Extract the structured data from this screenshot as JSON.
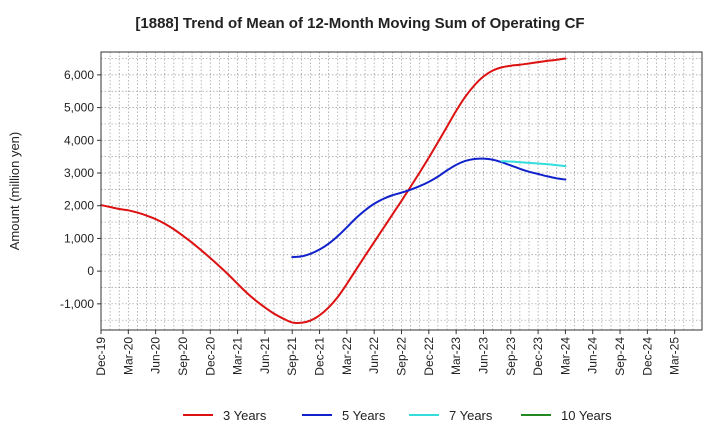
{
  "chart_data": {
    "type": "line",
    "title": "[1888]  Trend of Mean of 12-Month Moving Sum of Operating CF",
    "xlabel": "",
    "ylabel": "Amount (million yen)",
    "ylim": [
      -1800,
      6700
    ],
    "yticks": [
      -1000,
      0,
      1000,
      2000,
      3000,
      4000,
      5000,
      6000
    ],
    "ytick_labels": [
      "-1,000",
      "0",
      "1,000",
      "2,000",
      "3,000",
      "4,000",
      "5,000",
      "6,000"
    ],
    "x_range": [
      0,
      66
    ],
    "xticks": [
      {
        "label": "Dec-19",
        "pos": 0
      },
      {
        "label": "Mar-20",
        "pos": 3
      },
      {
        "label": "Jun-20",
        "pos": 6
      },
      {
        "label": "Sep-20",
        "pos": 9
      },
      {
        "label": "Dec-20",
        "pos": 12
      },
      {
        "label": "Mar-21",
        "pos": 15
      },
      {
        "label": "Jun-21",
        "pos": 18
      },
      {
        "label": "Sep-21",
        "pos": 21
      },
      {
        "label": "Dec-21",
        "pos": 24
      },
      {
        "label": "Mar-22",
        "pos": 27
      },
      {
        "label": "Jun-22",
        "pos": 30
      },
      {
        "label": "Sep-22",
        "pos": 33
      },
      {
        "label": "Dec-22",
        "pos": 36
      },
      {
        "label": "Mar-23",
        "pos": 39
      },
      {
        "label": "Jun-23",
        "pos": 42
      },
      {
        "label": "Sep-23",
        "pos": 45
      },
      {
        "label": "Dec-23",
        "pos": 48
      },
      {
        "label": "Mar-24",
        "pos": 51
      },
      {
        "label": "Jun-24",
        "pos": 54
      },
      {
        "label": "Sep-24",
        "pos": 57
      },
      {
        "label": "Dec-24",
        "pos": 60
      },
      {
        "label": "Mar-25",
        "pos": 63
      }
    ],
    "grid": true,
    "legend_position": "bottom",
    "series": [
      {
        "name": "3 Years",
        "color": "#dd1111",
        "points": [
          [
            0,
            2020
          ],
          [
            1,
            1960
          ],
          [
            2,
            1900
          ],
          [
            3,
            1860
          ],
          [
            4,
            1790
          ],
          [
            5,
            1700
          ],
          [
            6,
            1590
          ],
          [
            7,
            1450
          ],
          [
            8,
            1280
          ],
          [
            9,
            1080
          ],
          [
            10,
            870
          ],
          [
            11,
            640
          ],
          [
            12,
            400
          ],
          [
            13,
            150
          ],
          [
            14,
            -110
          ],
          [
            15,
            -390
          ],
          [
            16,
            -660
          ],
          [
            17,
            -900
          ],
          [
            18,
            -1110
          ],
          [
            19,
            -1300
          ],
          [
            20,
            -1450
          ],
          [
            21,
            -1570
          ],
          [
            22,
            -1580
          ],
          [
            23,
            -1510
          ],
          [
            24,
            -1350
          ],
          [
            25,
            -1110
          ],
          [
            26,
            -790
          ],
          [
            27,
            -390
          ],
          [
            28,
            40
          ],
          [
            29,
            470
          ],
          [
            30,
            890
          ],
          [
            31,
            1310
          ],
          [
            32,
            1730
          ],
          [
            33,
            2150
          ],
          [
            34,
            2580
          ],
          [
            35,
            3020
          ],
          [
            36,
            3470
          ],
          [
            37,
            3940
          ],
          [
            38,
            4420
          ],
          [
            39,
            4900
          ],
          [
            40,
            5330
          ],
          [
            41,
            5680
          ],
          [
            42,
            5950
          ],
          [
            43,
            6130
          ],
          [
            44,
            6230
          ],
          [
            45,
            6280
          ],
          [
            46,
            6310
          ],
          [
            47,
            6350
          ],
          [
            48,
            6390
          ],
          [
            49,
            6430
          ],
          [
            50,
            6460
          ],
          [
            51,
            6500
          ]
        ]
      },
      {
        "name": "5 Years",
        "color": "#1122cc",
        "points": [
          [
            21,
            430
          ],
          [
            22,
            450
          ],
          [
            23,
            530
          ],
          [
            24,
            660
          ],
          [
            25,
            840
          ],
          [
            26,
            1070
          ],
          [
            27,
            1340
          ],
          [
            28,
            1620
          ],
          [
            29,
            1860
          ],
          [
            30,
            2060
          ],
          [
            31,
            2210
          ],
          [
            32,
            2320
          ],
          [
            33,
            2400
          ],
          [
            34,
            2490
          ],
          [
            35,
            2600
          ],
          [
            36,
            2730
          ],
          [
            37,
            2890
          ],
          [
            38,
            3080
          ],
          [
            39,
            3250
          ],
          [
            40,
            3370
          ],
          [
            41,
            3430
          ],
          [
            42,
            3440
          ],
          [
            43,
            3410
          ],
          [
            44,
            3330
          ],
          [
            45,
            3230
          ],
          [
            46,
            3130
          ],
          [
            47,
            3040
          ],
          [
            48,
            2970
          ],
          [
            49,
            2900
          ],
          [
            50,
            2840
          ],
          [
            51,
            2800
          ]
        ]
      },
      {
        "name": "7 Years",
        "color": "#33dddd",
        "points": [
          [
            44,
            3360
          ],
          [
            45,
            3350
          ],
          [
            46,
            3330
          ],
          [
            47,
            3310
          ],
          [
            48,
            3290
          ],
          [
            49,
            3270
          ],
          [
            50,
            3240
          ],
          [
            51,
            3210
          ]
        ]
      },
      {
        "name": "10 Years",
        "color": "#228822",
        "points": []
      }
    ]
  }
}
